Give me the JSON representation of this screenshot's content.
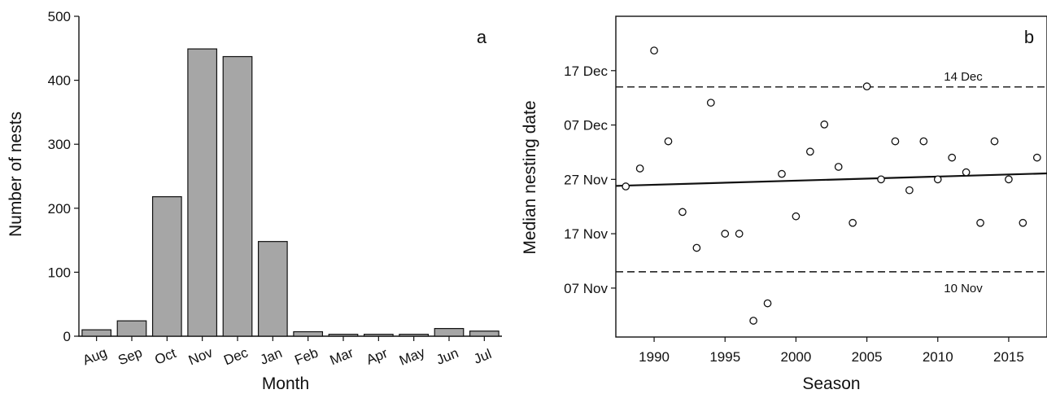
{
  "chart_data": [
    {
      "type": "bar",
      "panel_label": "a",
      "xlabel": "Month",
      "ylabel": "Number of nests",
      "categories": [
        "Aug",
        "Sep",
        "Oct",
        "Nov",
        "Dec",
        "Jan",
        "Feb",
        "Mar",
        "Apr",
        "May",
        "Jun",
        "Jul"
      ],
      "values": [
        10,
        24,
        218,
        449,
        437,
        148,
        7,
        3,
        3,
        3,
        12,
        8
      ],
      "ylim": [
        0,
        500
      ],
      "yticks": [
        0,
        100,
        200,
        300,
        400,
        500
      ],
      "bar_color": "#a6a6a6"
    },
    {
      "type": "scatter",
      "panel_label": "b",
      "xlabel": "Season",
      "ylabel": "Median nesting date",
      "xlim": [
        1987.3,
        2017.7
      ],
      "xticks": [
        1990,
        1995,
        2000,
        2005,
        2010,
        2015
      ],
      "ylim_day_of_year": [
        302,
        361
      ],
      "yticks": [
        {
          "label": "07 Nov",
          "day": 311
        },
        {
          "label": "17 Nov",
          "day": 321
        },
        {
          "label": "27 Nov",
          "day": 331
        },
        {
          "label": "07 Dec",
          "day": 341
        },
        {
          "label": "17 Dec",
          "day": 351
        }
      ],
      "points": [
        {
          "x": 1988,
          "day": 329.7
        },
        {
          "x": 1989,
          "day": 333.0
        },
        {
          "x": 1990,
          "day": 354.7
        },
        {
          "x": 1991,
          "day": 338.0
        },
        {
          "x": 1992,
          "day": 325.0
        },
        {
          "x": 1993,
          "day": 318.4
        },
        {
          "x": 1994,
          "day": 345.1
        },
        {
          "x": 1995,
          "day": 321.0
        },
        {
          "x": 1996,
          "day": 321.0
        },
        {
          "x": 1997,
          "day": 305.0
        },
        {
          "x": 1998,
          "day": 308.2
        },
        {
          "x": 1999,
          "day": 332.0
        },
        {
          "x": 2000,
          "day": 324.2
        },
        {
          "x": 2001,
          "day": 336.1
        },
        {
          "x": 2002,
          "day": 341.1
        },
        {
          "x": 2003,
          "day": 333.3
        },
        {
          "x": 2004,
          "day": 323.0
        },
        {
          "x": 2005,
          "day": 348.1
        },
        {
          "x": 2006,
          "day": 331.0
        },
        {
          "x": 2007,
          "day": 338.0
        },
        {
          "x": 2008,
          "day": 329.0
        },
        {
          "x": 2009,
          "day": 338.0
        },
        {
          "x": 2010,
          "day": 331.0
        },
        {
          "x": 2011,
          "day": 335.0
        },
        {
          "x": 2012,
          "day": 332.3
        },
        {
          "x": 2013,
          "day": 323.0
        },
        {
          "x": 2014,
          "day": 338.0
        },
        {
          "x": 2015,
          "day": 331.0
        },
        {
          "x": 2016,
          "day": 323.0
        },
        {
          "x": 2017,
          "day": 335.0
        }
      ],
      "trend_line": {
        "x": [
          1987.3,
          2017.7
        ],
        "day": [
          329.8,
          332.1
        ]
      },
      "reference_lines": [
        {
          "label": "14 Dec",
          "day": 348,
          "style": "dashed"
        },
        {
          "label": "10 Nov",
          "day": 314,
          "style": "dashed"
        }
      ]
    }
  ]
}
